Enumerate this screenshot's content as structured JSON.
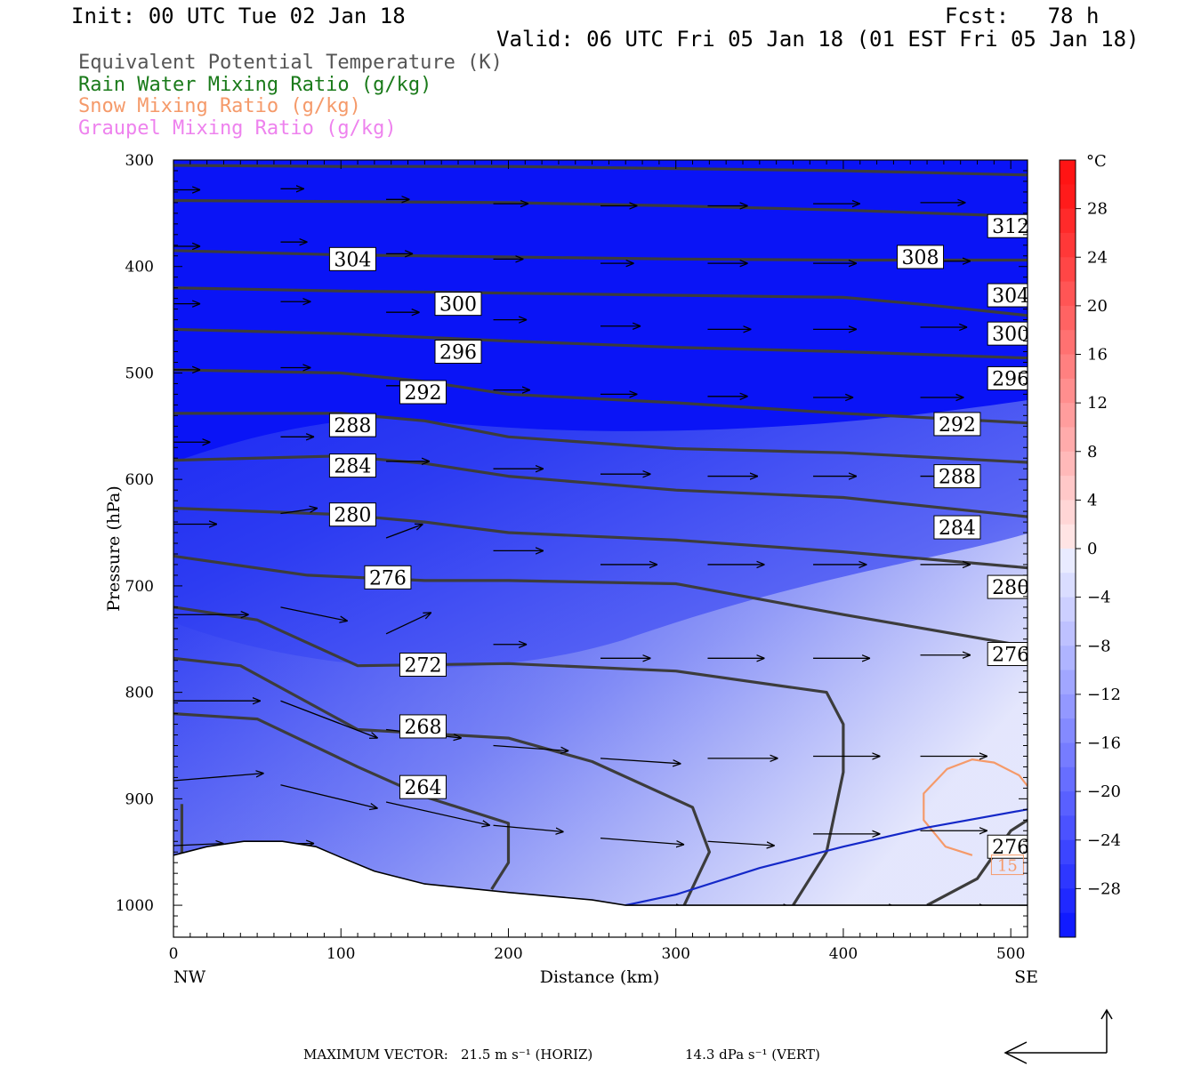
{
  "header": {
    "init": "Init: 00 UTC Tue 02 Jan 18",
    "fcst": "Fcst:   78 h",
    "valid": "Valid: 06 UTC Fri 05 Jan 18 (01 EST Fri 05 Jan 18)"
  },
  "legend": [
    {
      "label": "Equivalent Potential Temperature (K)",
      "color": "#555555"
    },
    {
      "label": "Rain Water Mixing Ratio (g/kg)",
      "color": "#1a7a1a"
    },
    {
      "label": "Snow Mixing Ratio (g/kg)",
      "color": "#f59a6a"
    },
    {
      "label": "Graupel Mixing Ratio (g/kg)",
      "color": "#ee82ee"
    }
  ],
  "footer": {
    "max_vector_prefix": "MAXIMUM VECTOR:",
    "horiz": "21.5 m s⁻¹ (HORIZ)",
    "vert": "14.3 dPa s⁻¹ (VERT)"
  },
  "chart_data": {
    "type": "contour",
    "xlabel": "Distance (km)",
    "ylabel": "Pressure (hPa)",
    "xlim": [
      0,
      510
    ],
    "ylim": [
      300,
      1030
    ],
    "xticks": [
      0,
      100,
      200,
      300,
      400,
      500
    ],
    "yticks": [
      300,
      400,
      500,
      600,
      700,
      800,
      900,
      1000
    ],
    "x_end_labels": {
      "left": "NW",
      "right": "SE"
    },
    "colorbar": {
      "unit": "°C",
      "ticks": [
        28,
        24,
        20,
        16,
        12,
        8,
        4,
        0,
        -4,
        -8,
        -12,
        -16,
        -20,
        -24,
        -28
      ],
      "tick_labels": [
        "28",
        "24",
        "20",
        "16",
        "12",
        "8",
        "4",
        "0",
        "−4",
        "−8",
        "−12",
        "−16",
        "−20",
        "−24",
        "−28"
      ]
    },
    "theta_e_contours": [
      {
        "value": 312,
        "points": [
          [
            0,
            305
          ],
          [
            100,
            306
          ],
          [
            200,
            306
          ],
          [
            300,
            308
          ],
          [
            400,
            310
          ],
          [
            510,
            314
          ]
        ]
      },
      {
        "value": 308,
        "points": [
          [
            0,
            338
          ],
          [
            100,
            339
          ],
          [
            200,
            340
          ],
          [
            300,
            343
          ],
          [
            400,
            347
          ],
          [
            510,
            353
          ]
        ]
      },
      {
        "value": 304,
        "points": [
          [
            0,
            385
          ],
          [
            100,
            389
          ],
          [
            200,
            391
          ],
          [
            300,
            393
          ],
          [
            400,
            394
          ],
          [
            510,
            394
          ]
        ]
      },
      {
        "value": 300,
        "points": [
          [
            0,
            420
          ],
          [
            100,
            423
          ],
          [
            200,
            425
          ],
          [
            300,
            427
          ],
          [
            400,
            429
          ],
          [
            450,
            436
          ],
          [
            510,
            446
          ]
        ]
      },
      {
        "value": 296,
        "points": [
          [
            0,
            459
          ],
          [
            100,
            463
          ],
          [
            200,
            470
          ],
          [
            300,
            476
          ],
          [
            400,
            480
          ],
          [
            510,
            486
          ]
        ]
      },
      {
        "value": 292,
        "points": [
          [
            0,
            497
          ],
          [
            100,
            500
          ],
          [
            150,
            508
          ],
          [
            200,
            520
          ],
          [
            300,
            528
          ],
          [
            400,
            538
          ],
          [
            510,
            547
          ]
        ]
      },
      {
        "value": 288,
        "points": [
          [
            0,
            538
          ],
          [
            100,
            538
          ],
          [
            150,
            545
          ],
          [
            200,
            560
          ],
          [
            300,
            571
          ],
          [
            400,
            575
          ],
          [
            510,
            584
          ]
        ]
      },
      {
        "value": 284,
        "points": [
          [
            0,
            582
          ],
          [
            100,
            578
          ],
          [
            150,
            585
          ],
          [
            200,
            597
          ],
          [
            300,
            610
          ],
          [
            400,
            617
          ],
          [
            510,
            635
          ]
        ]
      },
      {
        "value": 280,
        "points": [
          [
            0,
            627
          ],
          [
            100,
            633
          ],
          [
            150,
            640
          ],
          [
            200,
            650
          ],
          [
            300,
            657
          ],
          [
            400,
            668
          ],
          [
            510,
            683
          ]
        ]
      },
      {
        "value": 276,
        "points": [
          [
            0,
            672
          ],
          [
            80,
            690
          ],
          [
            150,
            695
          ],
          [
            200,
            695
          ],
          [
            300,
            698
          ],
          [
            400,
            727
          ],
          [
            510,
            757
          ]
        ]
      },
      {
        "value": 272,
        "points": [
          [
            0,
            720
          ],
          [
            50,
            732
          ],
          [
            110,
            775
          ],
          [
            200,
            773
          ],
          [
            300,
            780
          ],
          [
            390,
            800
          ],
          [
            400,
            830
          ],
          [
            400,
            875
          ],
          [
            390,
            950
          ],
          [
            370,
            1000
          ]
        ]
      },
      {
        "value": 268,
        "points": [
          [
            0,
            768
          ],
          [
            40,
            775
          ],
          [
            110,
            835
          ],
          [
            200,
            843
          ],
          [
            250,
            865
          ],
          [
            310,
            908
          ],
          [
            320,
            950
          ],
          [
            305,
            1000
          ]
        ]
      },
      {
        "value": 264,
        "points": [
          [
            0,
            820
          ],
          [
            50,
            825
          ],
          [
            110,
            870
          ],
          [
            150,
            898
          ],
          [
            200,
            923
          ],
          [
            200,
            960
          ],
          [
            190,
            985
          ]
        ]
      },
      {
        "value": 276,
        "points": [
          [
            450,
            1000
          ],
          [
            480,
            975
          ],
          [
            500,
            930
          ],
          [
            510,
            920
          ]
        ]
      },
      {
        "value": 260,
        "points": [
          [
            5,
            905
          ],
          [
            5,
            950
          ],
          [
            3,
            958
          ]
        ]
      }
    ],
    "contour_labels": [
      {
        "text": "312",
        "x": 500,
        "p": 362
      },
      {
        "text": "304",
        "x": 107,
        "p": 393
      },
      {
        "text": "308",
        "x": 446,
        "p": 391
      },
      {
        "text": "300",
        "x": 170,
        "p": 435
      },
      {
        "text": "304",
        "x": 500,
        "p": 427
      },
      {
        "text": "296",
        "x": 170,
        "p": 480
      },
      {
        "text": "300",
        "x": 500,
        "p": 463
      },
      {
        "text": "292",
        "x": 149,
        "p": 518
      },
      {
        "text": "296",
        "x": 500,
        "p": 505
      },
      {
        "text": "288",
        "x": 107,
        "p": 549
      },
      {
        "text": "292",
        "x": 468,
        "p": 548
      },
      {
        "text": "284",
        "x": 107,
        "p": 587
      },
      {
        "text": "288",
        "x": 468,
        "p": 597
      },
      {
        "text": "280",
        "x": 107,
        "p": 633
      },
      {
        "text": "284",
        "x": 468,
        "p": 645
      },
      {
        "text": "276",
        "x": 128,
        "p": 692
      },
      {
        "text": "280",
        "x": 500,
        "p": 701
      },
      {
        "text": "272",
        "x": 149,
        "p": 774
      },
      {
        "text": "276",
        "x": 500,
        "p": 764
      },
      {
        "text": "268",
        "x": 149,
        "p": 832
      },
      {
        "text": "264",
        "x": 149,
        "p": 889
      },
      {
        "text": "276",
        "x": 500,
        "p": 945
      }
    ],
    "snow_contours": [
      {
        "value": 0.15,
        "points": [
          [
            477,
            953
          ],
          [
            461,
            945
          ],
          [
            448,
            920
          ],
          [
            448,
            895
          ],
          [
            462,
            872
          ],
          [
            477,
            863
          ],
          [
            490,
            866
          ],
          [
            505,
            878
          ],
          [
            510,
            888
          ]
        ]
      }
    ],
    "rain_contours": [
      {
        "value": "",
        "points": [
          [
            270,
            1000
          ],
          [
            300,
            990
          ],
          [
            350,
            965
          ],
          [
            400,
            945
          ],
          [
            450,
            927
          ],
          [
            510,
            910
          ]
        ]
      }
    ],
    "contour_value_labels": [
      {
        "text": "15",
        "color": "#f59a6a",
        "x": 498,
        "p": 962
      }
    ],
    "terrain": [
      [
        0,
        953
      ],
      [
        20,
        945
      ],
      [
        42,
        940
      ],
      [
        65,
        940
      ],
      [
        85,
        945
      ],
      [
        100,
        955
      ],
      [
        120,
        968
      ],
      [
        150,
        980
      ],
      [
        200,
        988
      ],
      [
        250,
        995
      ],
      [
        270,
        1000
      ],
      [
        510,
        1000
      ]
    ],
    "wind_vectors": [
      {
        "x": 0,
        "p": 328,
        "dx": 16,
        "dp": 0
      },
      {
        "x": 64,
        "p": 327,
        "dx": 14,
        "dp": 0
      },
      {
        "x": 127,
        "p": 337,
        "dx": 14,
        "dp": 0
      },
      {
        "x": 191,
        "p": 341,
        "dx": 21,
        "dp": 0
      },
      {
        "x": 255,
        "p": 343,
        "dx": 22,
        "dp": 0
      },
      {
        "x": 319,
        "p": 343,
        "dx": 24,
        "dp": 0
      },
      {
        "x": 382,
        "p": 341,
        "dx": 28,
        "dp": 0
      },
      {
        "x": 446,
        "p": 340,
        "dx": 27,
        "dp": 0
      },
      {
        "x": 0,
        "p": 381,
        "dx": 16,
        "dp": 0
      },
      {
        "x": 64,
        "p": 377,
        "dx": 16,
        "dp": 0
      },
      {
        "x": 127,
        "p": 388,
        "dx": 16,
        "dp": 0
      },
      {
        "x": 191,
        "p": 393,
        "dx": 18,
        "dp": 0
      },
      {
        "x": 255,
        "p": 397,
        "dx": 20,
        "dp": 0
      },
      {
        "x": 319,
        "p": 397,
        "dx": 24,
        "dp": 0
      },
      {
        "x": 382,
        "p": 397,
        "dx": 26,
        "dp": 0
      },
      {
        "x": 446,
        "p": 395,
        "dx": 30,
        "dp": 0
      },
      {
        "x": 0,
        "p": 435,
        "dx": 16,
        "dp": 0
      },
      {
        "x": 64,
        "p": 433,
        "dx": 18,
        "dp": 0
      },
      {
        "x": 127,
        "p": 443,
        "dx": 20,
        "dp": 0
      },
      {
        "x": 191,
        "p": 450,
        "dx": 20,
        "dp": 0
      },
      {
        "x": 255,
        "p": 456,
        "dx": 24,
        "dp": 0
      },
      {
        "x": 319,
        "p": 459,
        "dx": 26,
        "dp": 0
      },
      {
        "x": 382,
        "p": 459,
        "dx": 26,
        "dp": 0
      },
      {
        "x": 446,
        "p": 457,
        "dx": 28,
        "dp": 0
      },
      {
        "x": 0,
        "p": 497,
        "dx": 16,
        "dp": 0
      },
      {
        "x": 64,
        "p": 495,
        "dx": 18,
        "dp": 0
      },
      {
        "x": 127,
        "p": 512,
        "dx": 18,
        "dp": 0
      },
      {
        "x": 191,
        "p": 516,
        "dx": 22,
        "dp": 0
      },
      {
        "x": 255,
        "p": 520,
        "dx": 22,
        "dp": 0
      },
      {
        "x": 319,
        "p": 522,
        "dx": 24,
        "dp": 0
      },
      {
        "x": 382,
        "p": 523,
        "dx": 24,
        "dp": 0
      },
      {
        "x": 446,
        "p": 523,
        "dx": 26,
        "dp": 0
      },
      {
        "x": 0,
        "p": 565,
        "dx": 22,
        "dp": 0
      },
      {
        "x": 64,
        "p": 560,
        "dx": 20,
        "dp": 0
      },
      {
        "x": 127,
        "p": 583,
        "dx": 26,
        "dp": 0
      },
      {
        "x": 191,
        "p": 590,
        "dx": 30,
        "dp": 0
      },
      {
        "x": 255,
        "p": 595,
        "dx": 30,
        "dp": 0
      },
      {
        "x": 319,
        "p": 597,
        "dx": 30,
        "dp": 0
      },
      {
        "x": 382,
        "p": 597,
        "dx": 26,
        "dp": 0
      },
      {
        "x": 446,
        "p": 597,
        "dx": 26,
        "dp": 0
      },
      {
        "x": 0,
        "p": 642,
        "dx": 26,
        "dp": 0
      },
      {
        "x": 64,
        "p": 632,
        "dx": 22,
        "dp": -5
      },
      {
        "x": 127,
        "p": 655,
        "dx": 22,
        "dp": -13
      },
      {
        "x": 191,
        "p": 667,
        "dx": 30,
        "dp": 0
      },
      {
        "x": 255,
        "p": 680,
        "dx": 34,
        "dp": 0
      },
      {
        "x": 319,
        "p": 680,
        "dx": 34,
        "dp": 0
      },
      {
        "x": 382,
        "p": 680,
        "dx": 32,
        "dp": 0
      },
      {
        "x": 446,
        "p": 680,
        "dx": 30,
        "dp": 0
      },
      {
        "x": 0,
        "p": 727,
        "dx": 45,
        "dp": 0
      },
      {
        "x": 64,
        "p": 720,
        "dx": 40,
        "dp": 13
      },
      {
        "x": 127,
        "p": 745,
        "dx": 27,
        "dp": -20
      },
      {
        "x": 191,
        "p": 755,
        "dx": 20,
        "dp": 0
      },
      {
        "x": 255,
        "p": 768,
        "dx": 30,
        "dp": 0
      },
      {
        "x": 319,
        "p": 768,
        "dx": 34,
        "dp": 0
      },
      {
        "x": 382,
        "p": 768,
        "dx": 34,
        "dp": 0
      },
      {
        "x": 446,
        "p": 765,
        "dx": 30,
        "dp": 0
      },
      {
        "x": 0,
        "p": 808,
        "dx": 52,
        "dp": 0
      },
      {
        "x": 64,
        "p": 808,
        "dx": 58,
        "dp": 35
      },
      {
        "x": 127,
        "p": 835,
        "dx": 45,
        "dp": 8
      },
      {
        "x": 191,
        "p": 850,
        "dx": 45,
        "dp": 5
      },
      {
        "x": 255,
        "p": 862,
        "dx": 48,
        "dp": 5
      },
      {
        "x": 319,
        "p": 862,
        "dx": 42,
        "dp": 0
      },
      {
        "x": 382,
        "p": 860,
        "dx": 40,
        "dp": 0
      },
      {
        "x": 446,
        "p": 860,
        "dx": 40,
        "dp": 0
      },
      {
        "x": 0,
        "p": 883,
        "dx": 54,
        "dp": -7
      },
      {
        "x": 64,
        "p": 887,
        "dx": 58,
        "dp": 22
      },
      {
        "x": 127,
        "p": 903,
        "dx": 62,
        "dp": 22
      },
      {
        "x": 191,
        "p": 925,
        "dx": 42,
        "dp": 6
      },
      {
        "x": 255,
        "p": 937,
        "dx": 50,
        "dp": 6
      },
      {
        "x": 319,
        "p": 940,
        "dx": 40,
        "dp": 4
      },
      {
        "x": 382,
        "p": 933,
        "dx": 40,
        "dp": 0
      },
      {
        "x": 446,
        "p": 930,
        "dx": 40,
        "dp": 0
      },
      {
        "x": 0,
        "p": 944,
        "dx": 30,
        "dp": -2
      },
      {
        "x": 64,
        "p": 942,
        "dx": 20,
        "dp": 0
      },
      {
        "x": 127,
        "p": 985,
        "dx": 20,
        "dp": 6
      },
      {
        "x": 255,
        "p": 1002,
        "dx": 50,
        "dp": 0
      },
      {
        "x": 319,
        "p": 1002,
        "dx": 50,
        "dp": 0
      },
      {
        "x": 382,
        "p": 1002,
        "dx": 50,
        "dp": 0
      },
      {
        "x": 446,
        "p": 1002,
        "dx": 40,
        "dp": 0
      }
    ]
  }
}
